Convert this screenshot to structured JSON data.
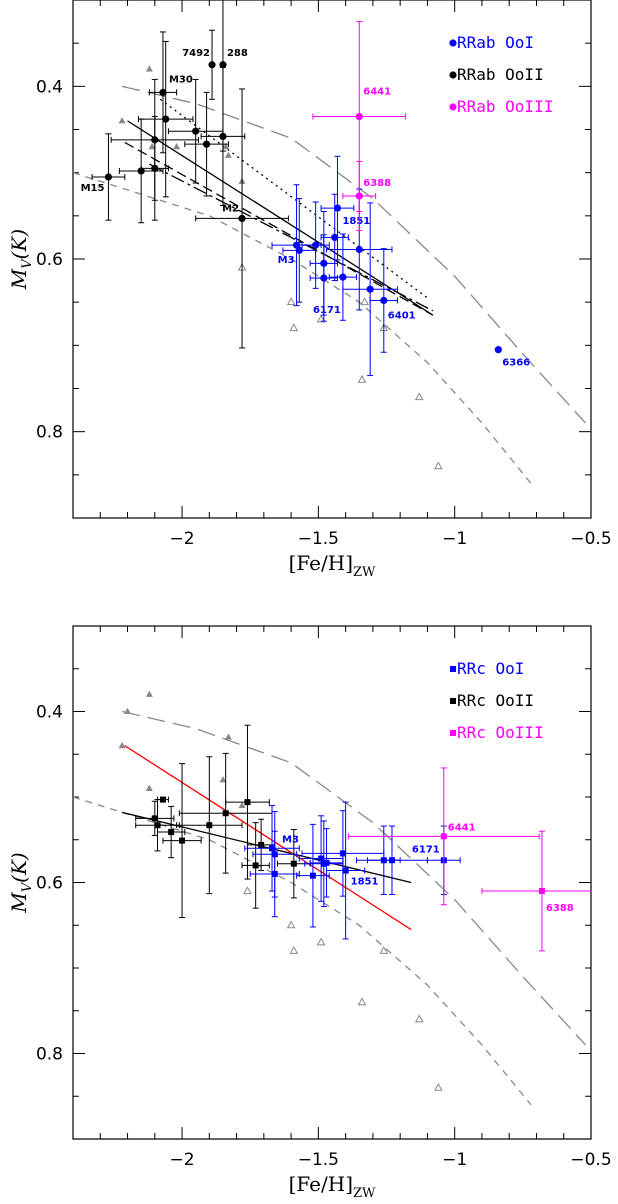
{
  "chart_data": [
    {
      "type": "scatter",
      "xlabel_main": "[Fe/H]",
      "xlabel_sub": "ZW",
      "ylabel_main": "M",
      "ylabel_sub": "V",
      "ylabel_tail": "(K)",
      "xlim": [
        -2.4,
        -0.5
      ],
      "ylim": [
        0.3,
        0.9
      ],
      "xticks": [
        -2,
        -1.5,
        -1,
        -0.5
      ],
      "xtick_labels": [
        "−2",
        "−1.5",
        "−1",
        "−0.5"
      ],
      "yticks": [
        0.4,
        0.6,
        0.8
      ],
      "ytick_labels": [
        "0.4",
        "0.6",
        "0.8"
      ],
      "marker": "circle",
      "legend": [
        {
          "label": "RRab OoI",
          "color": "#0000ff"
        },
        {
          "label": "RRab OoII",
          "color": "#000000"
        },
        {
          "label": "RRab OoIII",
          "color": "#ff00ff"
        }
      ],
      "series": [
        {
          "color": "#000000",
          "points": [
            {
              "x": -2.27,
              "y": 0.505,
              "xerr": 0.06,
              "yerr": 0.05,
              "label": "M15"
            },
            {
              "x": -2.15,
              "y": 0.498,
              "xerr": 0.08,
              "yerr": 0.06
            },
            {
              "x": -2.1,
              "y": 0.462,
              "xerr": 0.16,
              "yerr": 0.07
            },
            {
              "x": -2.1,
              "y": 0.495,
              "xerr": 0.05,
              "yerr": 0.06
            },
            {
              "x": -2.07,
              "y": 0.407,
              "xerr": 0.05,
              "yerr": 0.07,
              "label": "M30"
            },
            {
              "x": -2.06,
              "y": 0.438,
              "xerr": 0.1,
              "yerr": 0.09
            },
            {
              "x": -1.95,
              "y": 0.452,
              "xerr": 0.1,
              "yerr": 0.06
            },
            {
              "x": -1.91,
              "y": 0.467,
              "xerr": 0.08,
              "yerr": 0.06
            },
            {
              "x": -1.89,
              "y": 0.375,
              "xerr": 0.0,
              "yerr": 0.04,
              "label": "7492"
            },
            {
              "x": -1.85,
              "y": 0.375,
              "xerr": 0.0,
              "yerr": 0.1,
              "label": "288"
            },
            {
              "x": -1.85,
              "y": 0.458,
              "xerr": 0.08,
              "yerr": 0.08
            },
            {
              "x": -1.78,
              "y": 0.553,
              "xerr": 0.17,
              "yerr": 0.15,
              "label": "M2"
            }
          ]
        },
        {
          "color": "#0000ff",
          "points": [
            {
              "x": -1.58,
              "y": 0.584,
              "xerr": 0.09,
              "yerr": 0.07,
              "label": "M3"
            },
            {
              "x": -1.57,
              "y": 0.59,
              "xerr": 0.06,
              "yerr": 0.06
            },
            {
              "x": -1.51,
              "y": 0.584,
              "xerr": 0.05,
              "yerr": 0.05
            },
            {
              "x": -1.48,
              "y": 0.605,
              "xerr": 0.05,
              "yerr": 0.06
            },
            {
              "x": -1.48,
              "y": 0.622,
              "xerr": 0.05,
              "yerr": 0.05
            },
            {
              "x": -1.44,
              "y": 0.575,
              "xerr": 0.05,
              "yerr": 0.05
            },
            {
              "x": -1.43,
              "y": 0.541,
              "xerr": 0.06,
              "yerr": 0.06,
              "label": "1851"
            },
            {
              "x": -1.41,
              "y": 0.621,
              "xerr": 0.05,
              "yerr": 0.05,
              "label": "6171"
            },
            {
              "x": -1.35,
              "y": 0.589,
              "xerr": 0.12,
              "yerr": 0.07
            },
            {
              "x": -1.31,
              "y": 0.635,
              "xerr": 0.1,
              "yerr": 0.1
            },
            {
              "x": -1.26,
              "y": 0.648,
              "xerr": 0.05,
              "yerr": 0.06,
              "label": "6401"
            },
            {
              "x": -0.84,
              "y": 0.705,
              "xerr": 0.0,
              "yerr": 0.0,
              "label": "6366"
            }
          ]
        },
        {
          "color": "#ff00ff",
          "points": [
            {
              "x": -1.35,
              "y": 0.435,
              "xerr": 0.17,
              "yerr": 0.11,
              "label": "6441"
            },
            {
              "x": -1.35,
              "y": 0.527,
              "xerr": 0.06,
              "yerr": 0.04,
              "label": "6388"
            }
          ]
        }
      ],
      "triangles_filled": [
        {
          "x": -2.22,
          "y": 0.44
        },
        {
          "x": -2.12,
          "y": 0.38
        },
        {
          "x": -2.11,
          "y": 0.47
        },
        {
          "x": -2.02,
          "y": 0.47
        },
        {
          "x": -1.84,
          "y": 0.47
        },
        {
          "x": -1.83,
          "y": 0.48
        },
        {
          "x": -1.78,
          "y": 0.51
        }
      ],
      "triangles_open": [
        {
          "x": -1.78,
          "y": 0.61
        },
        {
          "x": -1.6,
          "y": 0.65
        },
        {
          "x": -1.59,
          "y": 0.68
        },
        {
          "x": -1.49,
          "y": 0.67
        },
        {
          "x": -1.34,
          "y": 0.74
        },
        {
          "x": -1.33,
          "y": 0.65
        },
        {
          "x": -1.26,
          "y": 0.68
        },
        {
          "x": -1.13,
          "y": 0.76
        },
        {
          "x": -1.06,
          "y": 0.84
        }
      ],
      "lines": [
        {
          "style": "long-dash",
          "color": "#888888",
          "points": [
            [
              -2.22,
              0.4
            ],
            [
              -1.95,
              0.42
            ],
            [
              -1.6,
              0.46
            ],
            [
              -1.3,
              0.53
            ],
            [
              -1.0,
              0.62
            ],
            [
              -0.75,
              0.71
            ],
            [
              -0.52,
              0.79
            ]
          ]
        },
        {
          "style": "short-dash",
          "color": "#888888",
          "points": [
            [
              -2.4,
              0.5
            ],
            [
              -2.2,
              0.52
            ],
            [
              -1.9,
              0.55
            ],
            [
              -1.6,
              0.6
            ],
            [
              -1.35,
              0.65
            ],
            [
              -1.1,
              0.72
            ],
            [
              -0.9,
              0.79
            ],
            [
              -0.72,
              0.86
            ]
          ]
        },
        {
          "style": "solid",
          "color": "#000000",
          "points": [
            [
              -2.2,
              0.44
            ],
            [
              -1.08,
              0.665
            ]
          ]
        },
        {
          "style": "dash",
          "color": "#000000",
          "points": [
            [
              -2.21,
              0.465
            ],
            [
              -1.08,
              0.665
            ]
          ]
        },
        {
          "style": "long-dash-black",
          "color": "#000000",
          "points": [
            [
              -2.12,
              0.49
            ],
            [
              -1.08,
              0.66
            ]
          ]
        },
        {
          "style": "dot",
          "color": "#000000",
          "points": [
            [
              -2.08,
              0.415
            ],
            [
              -1.1,
              0.645
            ]
          ]
        }
      ]
    },
    {
      "type": "scatter",
      "xlabel_main": "[Fe/H]",
      "xlabel_sub": "ZW",
      "ylabel_main": "M",
      "ylabel_sub": "V",
      "ylabel_tail": "(K)",
      "xlim": [
        -2.4,
        -0.5
      ],
      "ylim": [
        0.3,
        0.9
      ],
      "xticks": [
        -2,
        -1.5,
        -1,
        -0.5
      ],
      "xtick_labels": [
        "−2",
        "−1.5",
        "−1",
        "−0.5"
      ],
      "yticks": [
        0.4,
        0.6,
        0.8
      ],
      "ytick_labels": [
        "0.4",
        "0.6",
        "0.8"
      ],
      "marker": "square",
      "legend": [
        {
          "label": "RRc OoI",
          "color": "#0000ff"
        },
        {
          "label": "RRc OoII",
          "color": "#000000"
        },
        {
          "label": "RRc OoIII",
          "color": "#ff00ff"
        }
      ],
      "series": [
        {
          "color": "#000000",
          "points": [
            {
              "x": -2.1,
              "y": 0.525,
              "xerr": 0.07,
              "yerr": 0.02
            },
            {
              "x": -2.09,
              "y": 0.533,
              "xerr": 0.08,
              "yerr": 0.03
            },
            {
              "x": -2.07,
              "y": 0.503,
              "xerr": 0.02,
              "yerr": 0.0
            },
            {
              "x": -2.04,
              "y": 0.541,
              "xerr": 0.05,
              "yerr": 0.03
            },
            {
              "x": -2.0,
              "y": 0.551,
              "xerr": 0.07,
              "yerr": 0.09
            },
            {
              "x": -1.9,
              "y": 0.533,
              "xerr": 0.12,
              "yerr": 0.08
            },
            {
              "x": -1.84,
              "y": 0.519,
              "xerr": 0.17,
              "yerr": 0.07
            },
            {
              "x": -1.76,
              "y": 0.506,
              "xerr": 0.08,
              "yerr": 0.09
            },
            {
              "x": -1.73,
              "y": 0.58,
              "xerr": 0.05,
              "yerr": 0.05
            },
            {
              "x": -1.71,
              "y": 0.556,
              "xerr": 0.05,
              "yerr": 0.03
            },
            {
              "x": -1.59,
              "y": 0.578,
              "xerr": 0.06,
              "yerr": 0.04
            }
          ]
        },
        {
          "color": "#0000ff",
          "points": [
            {
              "x": -1.67,
              "y": 0.56,
              "xerr": 0.1,
              "yerr": 0.05,
              "label": "M3"
            },
            {
              "x": -1.66,
              "y": 0.567,
              "xerr": 0.08,
              "yerr": 0.05
            },
            {
              "x": -1.66,
              "y": 0.59,
              "xerr": 0.09,
              "yerr": 0.05
            },
            {
              "x": -1.52,
              "y": 0.592,
              "xerr": 0.06,
              "yerr": 0.06
            },
            {
              "x": -1.49,
              "y": 0.572,
              "xerr": 0.08,
              "yerr": 0.05
            },
            {
              "x": -1.48,
              "y": 0.578,
              "xerr": 0.07,
              "yerr": 0.05
            },
            {
              "x": -1.47,
              "y": 0.577,
              "xerr": 0.06,
              "yerr": 0.04
            },
            {
              "x": -1.41,
              "y": 0.566,
              "xerr": 0.15,
              "yerr": 0.05
            },
            {
              "x": -1.4,
              "y": 0.586,
              "xerr": 0.07,
              "yerr": 0.08,
              "label": "1851"
            },
            {
              "x": -1.26,
              "y": 0.574,
              "xerr": 0.06,
              "yerr": 0.04
            },
            {
              "x": -1.23,
              "y": 0.574,
              "xerr": 0.13,
              "yerr": 0.04
            },
            {
              "x": -1.04,
              "y": 0.574,
              "xerr": 0.06,
              "yerr": 0.04,
              "label": "6171"
            }
          ]
        },
        {
          "color": "#ff00ff",
          "points": [
            {
              "x": -1.04,
              "y": 0.546,
              "xerr": 0.35,
              "yerr": 0.08,
              "label": "6441"
            },
            {
              "x": -0.68,
              "y": 0.61,
              "xerr": 0.22,
              "yerr": 0.07,
              "label": "6388"
            }
          ]
        }
      ],
      "triangles_filled": [
        {
          "x": -2.22,
          "y": 0.44
        },
        {
          "x": -2.2,
          "y": 0.4
        },
        {
          "x": -2.12,
          "y": 0.38
        },
        {
          "x": -2.12,
          "y": 0.49
        },
        {
          "x": -1.83,
          "y": 0.43
        },
        {
          "x": -1.85,
          "y": 0.48
        },
        {
          "x": -1.78,
          "y": 0.51
        }
      ],
      "triangles_open": [
        {
          "x": -1.76,
          "y": 0.61
        },
        {
          "x": -1.6,
          "y": 0.65
        },
        {
          "x": -1.59,
          "y": 0.68
        },
        {
          "x": -1.49,
          "y": 0.67
        },
        {
          "x": -1.34,
          "y": 0.74
        },
        {
          "x": -1.26,
          "y": 0.68
        },
        {
          "x": -1.13,
          "y": 0.76
        },
        {
          "x": -1.06,
          "y": 0.84
        }
      ],
      "lines": [
        {
          "style": "long-dash",
          "color": "#888888",
          "points": [
            [
              -2.22,
              0.4
            ],
            [
              -1.95,
              0.42
            ],
            [
              -1.6,
              0.46
            ],
            [
              -1.3,
              0.53
            ],
            [
              -1.0,
              0.62
            ],
            [
              -0.75,
              0.71
            ],
            [
              -0.52,
              0.79
            ]
          ]
        },
        {
          "style": "short-dash",
          "color": "#888888",
          "points": [
            [
              -2.4,
              0.5
            ],
            [
              -2.2,
              0.52
            ],
            [
              -1.9,
              0.55
            ],
            [
              -1.6,
              0.6
            ],
            [
              -1.35,
              0.65
            ],
            [
              -1.1,
              0.72
            ],
            [
              -0.9,
              0.79
            ],
            [
              -0.72,
              0.86
            ]
          ]
        },
        {
          "style": "solid",
          "color": "#000000",
          "points": [
            [
              -2.22,
              0.518
            ],
            [
              -1.16,
              0.6
            ]
          ]
        },
        {
          "style": "solid",
          "color": "#ff0000",
          "points": [
            [
              -2.21,
              0.44
            ],
            [
              -1.16,
              0.655
            ]
          ]
        }
      ]
    }
  ]
}
